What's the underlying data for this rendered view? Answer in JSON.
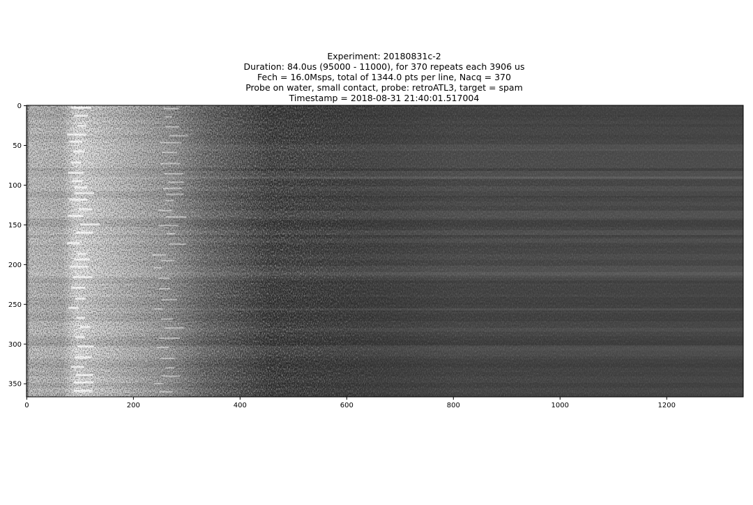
{
  "chart_data": {
    "type": "image",
    "title_lines": [
      "Experiment: 20180831c-2",
      "Duration: 84.0us (95000 - 11000), for 370 repeats each 3906 us",
      "Fech = 16.0Msps, total of 1344.0 pts per line, Nacq = 370",
      "Probe on water, small contact, probe: retroATL3, target = spam",
      "Timestamp = 2018-08-31 21:40:01.517004"
    ],
    "colormap": "gray",
    "xlim": [
      -0.5,
      1343.5
    ],
    "xticks": [
      0,
      200,
      400,
      600,
      800,
      1000,
      1200
    ],
    "ylim": [
      366.5,
      -0.5
    ],
    "yticks": [
      0,
      50,
      100,
      150,
      200,
      250,
      300,
      350
    ]
  }
}
